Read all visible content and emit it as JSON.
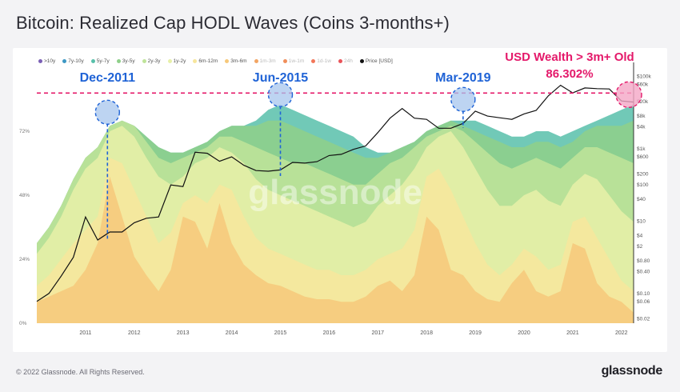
{
  "title": "Bitcoin: Realized Cap HODL Waves (Coins 3-months+)",
  "footer": {
    "copyright": "© 2022 Glassnode. All Rights Reserved.",
    "brand": "glassnode"
  },
  "watermark": "glassnode",
  "colors": {
    "bands": [
      "#7b5fb5",
      "#3d98c4",
      "#58c0aa",
      "#8fd08a",
      "#bfe49a",
      "#e7f0a8",
      "#f7e69c",
      "#f6c87a",
      "#f2a564",
      "#f08e5a",
      "#f2775a",
      "#e9545a",
      "#c8324f"
    ],
    "price": "#111111",
    "annotation_blue": "#1f63d6",
    "annotation_pink": "#e4196a",
    "circle_blue_fill": "#a7c6ee",
    "circle_pink_fill": "#f4a6c6"
  },
  "chart_data": {
    "type": "area",
    "title": "Bitcoin: Realized Cap HODL Waves (Coins 3-months+)",
    "legend": [
      {
        "label": ">10y",
        "color": "#7b5fb5"
      },
      {
        "label": "7y-10y",
        "color": "#3d98c4"
      },
      {
        "label": "5y-7y",
        "color": "#58c0aa"
      },
      {
        "label": "3y-5y",
        "color": "#8fd08a"
      },
      {
        "label": "2y-3y",
        "color": "#bfe49a"
      },
      {
        "label": "1y-2y",
        "color": "#e7f0a8"
      },
      {
        "label": "6m-12m",
        "color": "#f7e69c"
      },
      {
        "label": "3m-6m",
        "color": "#f6c87a"
      },
      {
        "label": "1m-3m",
        "color": "#f2a564"
      },
      {
        "label": "1w-1m",
        "color": "#f08e5a"
      },
      {
        "label": "1d-1w",
        "color": "#f2775a"
      },
      {
        "label": "24h",
        "color": "#e9545a"
      },
      {
        "label": "Price [USD]",
        "color": "#111111"
      }
    ],
    "x_ticks": [
      "2011",
      "2012",
      "2013",
      "2014",
      "2015",
      "2016",
      "2017",
      "2018",
      "2019",
      "2020",
      "2021",
      "2022"
    ],
    "x_range": [
      2010.5,
      2022.75
    ],
    "y_left_ticks": [
      "0%",
      "24%",
      "48%",
      "72%"
    ],
    "y_left_range": [
      0,
      96
    ],
    "y_right_ticks": [
      "$0.02",
      "$0.06",
      "$0.10",
      "$0.40",
      "$0.80",
      "$2",
      "$4",
      "$10",
      "$40",
      "$100",
      "$200",
      "$600",
      "$1k",
      "$4k",
      "$8k",
      "$20k",
      "$60k",
      "$100k"
    ],
    "y_right_values": [
      0.02,
      0.06,
      0.1,
      0.4,
      0.8,
      2,
      4,
      10,
      40,
      100,
      200,
      600,
      1000,
      4000,
      8000,
      20000,
      60000,
      100000
    ],
    "y_right_range": [
      0.015,
      180000
    ],
    "y_right_scale": "log",
    "x": [
      2010.5,
      2010.75,
      2011,
      2011.25,
      2011.5,
      2011.75,
      2012,
      2012.25,
      2012.5,
      2012.75,
      2013,
      2013.25,
      2013.5,
      2013.75,
      2014,
      2014.25,
      2014.5,
      2014.75,
      2015,
      2015.25,
      2015.5,
      2015.75,
      2016,
      2016.25,
      2016.5,
      2016.75,
      2017,
      2017.25,
      2017.5,
      2017.75,
      2018,
      2018.25,
      2018.5,
      2018.75,
      2019,
      2019.25,
      2019.5,
      2019.75,
      2020,
      2020.25,
      2020.5,
      2020.75,
      2021,
      2021.25,
      2021.5,
      2021.75,
      2022,
      2022.25,
      2022.5,
      2022.75
    ],
    "series": [
      {
        "name": "3m-6m",
        "values": [
          8,
          10,
          12,
          14,
          20,
          30,
          55,
          40,
          25,
          18,
          12,
          20,
          40,
          38,
          28,
          45,
          30,
          22,
          18,
          15,
          14,
          12,
          10,
          9,
          9,
          8,
          8,
          10,
          14,
          16,
          12,
          18,
          40,
          35,
          20,
          18,
          12,
          9,
          8,
          15,
          20,
          12,
          10,
          12,
          30,
          28,
          15,
          10,
          8,
          4
        ]
      },
      {
        "name": "6m-12m",
        "values": [
          14,
          18,
          24,
          30,
          35,
          40,
          62,
          60,
          50,
          40,
          30,
          34,
          45,
          48,
          45,
          52,
          50,
          40,
          32,
          28,
          26,
          24,
          22,
          20,
          20,
          18,
          18,
          20,
          24,
          26,
          28,
          35,
          55,
          58,
          50,
          40,
          30,
          22,
          18,
          22,
          28,
          25,
          20,
          22,
          38,
          40,
          32,
          24,
          16,
          12
        ]
      },
      {
        "name": "1y-2y",
        "values": [
          26,
          32,
          40,
          50,
          58,
          62,
          72,
          74,
          70,
          62,
          55,
          52,
          55,
          60,
          62,
          66,
          64,
          60,
          54,
          50,
          48,
          46,
          44,
          42,
          40,
          38,
          36,
          38,
          44,
          48,
          52,
          58,
          66,
          70,
          72,
          66,
          58,
          50,
          44,
          44,
          48,
          50,
          46,
          44,
          52,
          56,
          54,
          48,
          42,
          38
        ]
      },
      {
        "name": "2y-3y",
        "values": [
          30,
          36,
          44,
          54,
          62,
          66,
          74,
          76,
          74,
          68,
          62,
          60,
          62,
          64,
          66,
          70,
          70,
          68,
          66,
          64,
          62,
          60,
          60,
          58,
          56,
          54,
          52,
          52,
          56,
          60,
          62,
          66,
          70,
          72,
          74,
          72,
          68,
          64,
          60,
          58,
          60,
          62,
          60,
          58,
          62,
          66,
          66,
          64,
          62,
          60
        ]
      },
      {
        "name": "3y-5y",
        "values": [
          30,
          36,
          44,
          54,
          62,
          66,
          74,
          76,
          74,
          70,
          66,
          64,
          64,
          66,
          68,
          72,
          74,
          74,
          74,
          76,
          76,
          74,
          72,
          70,
          68,
          66,
          64,
          62,
          62,
          64,
          66,
          68,
          72,
          74,
          76,
          74,
          72,
          70,
          68,
          66,
          66,
          68,
          68,
          66,
          68,
          72,
          74,
          74,
          74,
          76
        ]
      },
      {
        "name": "5y-7y",
        "values": [
          30,
          36,
          44,
          54,
          62,
          66,
          74,
          76,
          74,
          70,
          66,
          64,
          64,
          66,
          68,
          72,
          74,
          74,
          76,
          80,
          82,
          80,
          78,
          76,
          74,
          72,
          70,
          66,
          64,
          64,
          66,
          68,
          72,
          74,
          76,
          76,
          76,
          74,
          72,
          70,
          70,
          72,
          72,
          70,
          72,
          74,
          76,
          78,
          80,
          82
        ]
      },
      {
        "name": "Price [USD]",
        "values": [
          0.06,
          0.1,
          0.3,
          1,
          13,
          3,
          5,
          5,
          9,
          12,
          13,
          100,
          90,
          800,
          750,
          450,
          600,
          350,
          250,
          240,
          260,
          420,
          400,
          440,
          650,
          700,
          960,
          1200,
          2800,
          7000,
          13000,
          7000,
          6500,
          3700,
          3700,
          5000,
          11000,
          8000,
          7200,
          6500,
          9200,
          11500,
          29000,
          57000,
          35000,
          48000,
          46000,
          45000,
          21000,
          19500
        ]
      }
    ],
    "annotations": [
      {
        "label": "Dec-2011",
        "x": 2011.95
      },
      {
        "label": "Jun-2015",
        "x": 2015.5
      },
      {
        "label": "Mar-2019",
        "x": 2019.25
      },
      {
        "label": "USD Wealth > 3m+ Old",
        "value": "86.302%",
        "x": 2022.75
      }
    ],
    "reference_line_pct": 86.302,
    "grid": false,
    "legend_placement": "top-left"
  }
}
